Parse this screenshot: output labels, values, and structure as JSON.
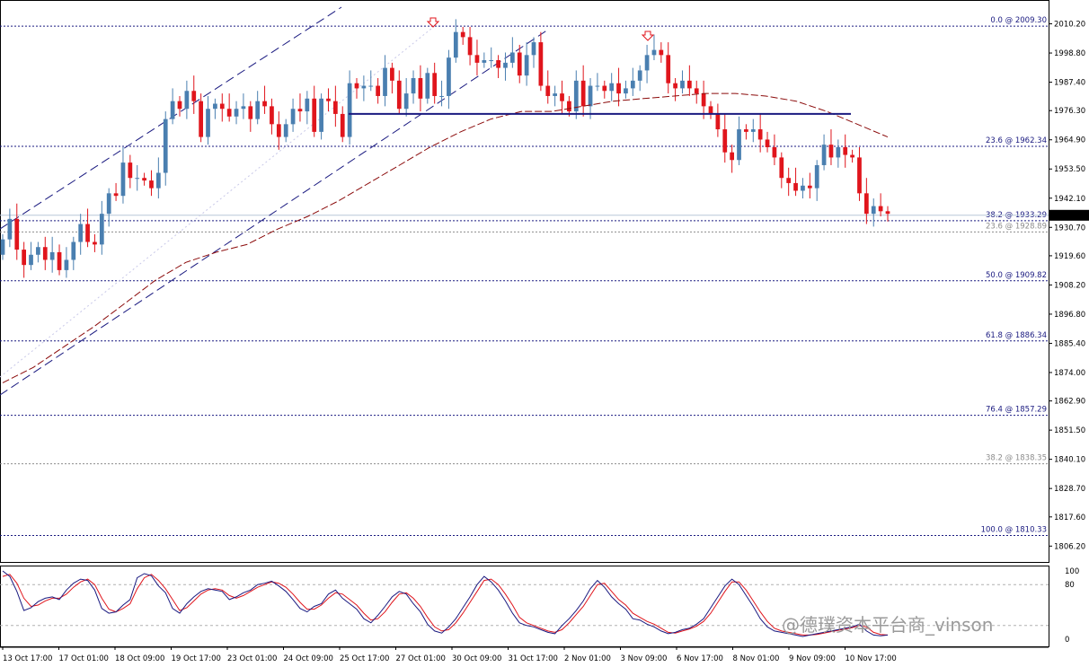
{
  "colors": {
    "bull": "#4a7fb0",
    "bear": "#e0151c",
    "fib_line": "#1a1a80",
    "fib_label": "#1a1a80",
    "fib_ghost": "#8c8c8c",
    "resistance": "#1a1a80",
    "ma": "#8b0a0a",
    "stoch_main": "#1a1a80",
    "stoch_signal": "#e0151c",
    "arrow": "#e0151c",
    "price_tag_bg": "#000000"
  },
  "watermark": "@德璞资本平台商_vinson",
  "current_price": "1935.42",
  "chart_data": {
    "type": "candlestick",
    "symbol_view": "price chart with fibonacci retracement and stochastic oscillator",
    "y_axis": {
      "range": [
        1800.0,
        2016.0
      ],
      "ticks": [
        "2010.20",
        "1998.80",
        "1987.40",
        "1976.30",
        "1964.90",
        "1953.50",
        "1942.10",
        "1930.70",
        "1919.60",
        "1908.20",
        "1896.80",
        "1885.40",
        "1874.00",
        "1862.90",
        "1851.50",
        "1840.10",
        "1828.70",
        "1817.60",
        "1806.20"
      ]
    },
    "x_axis": {
      "ticks": [
        "13 Oct 17:00",
        "17 Oct 01:00",
        "18 Oct 09:00",
        "19 Oct 17:00",
        "23 Oct 01:00",
        "24 Oct 09:00",
        "25 Oct 17:00",
        "27 Oct 01:00",
        "30 Oct 09:00",
        "31 Oct 17:00",
        "2 Nov 01:00",
        "3 Nov 09:00",
        "6 Nov 17:00",
        "8 Nov 01:00",
        "9 Nov 09:00",
        "10 Nov 17:00"
      ]
    },
    "candles_close": [
      1926,
      1934,
      1922,
      1916,
      1920,
      1923,
      1918,
      1921,
      1914,
      1918,
      1925,
      1932,
      1925,
      1924,
      1936,
      1944,
      1943,
      1956,
      1950,
      1950,
      1949,
      1946,
      1952,
      1973,
      1980,
      1977,
      1984,
      1980,
      1966,
      1977,
      1979,
      1977,
      1974,
      1977,
      1978,
      1973,
      1980,
      1978,
      1971,
      1966,
      1971,
      1977,
      1976,
      1981,
      1968,
      1981,
      1980,
      1975,
      1966,
      1987,
      1985,
      1986,
      1986,
      1982,
      1993,
      1988,
      1977,
      1983,
      1989,
      1981,
      1991,
      1982,
      1982,
      1997,
      2007,
      2005,
      1998,
      1995,
      1996,
      1996,
      1993,
      1995,
      1999,
      1990,
      1998,
      2003,
      1986,
      1982,
      1983,
      1980,
      1976,
      1988,
      1978,
      1986,
      1986,
      1984,
      1987,
      1983,
      1985,
      1988,
      1992,
      1998,
      2000,
      1998,
      1987,
      1985,
      1988,
      1985,
      1983,
      1978,
      1975,
      1969,
      1960,
      1957,
      1969,
      1968,
      1969,
      1965,
      1962,
      1958,
      1950,
      1948,
      1945,
      1947,
      1946,
      1955,
      1963,
      1958,
      1962,
      1959,
      1958,
      1944,
      1936,
      1939,
      1937,
      1936
    ],
    "fibonacci_levels": [
      {
        "label": "0.0 @ 2009.30",
        "price": 2009.3,
        "style": "main"
      },
      {
        "label": "23.6 @ 1962.34",
        "price": 1962.34,
        "style": "main"
      },
      {
        "label": "38.2 @ 1933.29",
        "price": 1933.29,
        "style": "main"
      },
      {
        "label": "23.6 @ 1928.89",
        "price": 1928.89,
        "style": "ghost"
      },
      {
        "label": "50.0 @ 1909.82",
        "price": 1909.82,
        "style": "main"
      },
      {
        "label": "61.8 @ 1886.34",
        "price": 1886.34,
        "style": "main"
      },
      {
        "label": "76.4 @ 1857.29",
        "price": 1857.29,
        "style": "main"
      },
      {
        "label": "38.2 @ 1838.35",
        "price": 1838.35,
        "style": "ghost"
      },
      {
        "label": "100.0 @ 1810.33",
        "price": 1810.33,
        "style": "main"
      }
    ],
    "resistance_price": 1975.0,
    "ma_values": [
      1870,
      1876,
      1884,
      1892,
      1901,
      1910,
      1917,
      1921,
      1924,
      1930,
      1935,
      1941,
      1948,
      1955,
      1962,
      1968,
      1973,
      1976,
      1976,
      1978,
      1980,
      1981,
      1982,
      1983,
      1983,
      1982,
      1980,
      1976,
      1971,
      1966
    ],
    "stochastic": {
      "ticks": [
        "100",
        "80",
        "0"
      ],
      "range": [
        0,
        100
      ],
      "main": [
        100,
        92,
        70,
        42,
        46,
        55,
        60,
        62,
        58,
        72,
        82,
        88,
        86,
        72,
        45,
        38,
        40,
        50,
        58,
        90,
        96,
        93,
        78,
        68,
        45,
        38,
        52,
        62,
        70,
        74,
        72,
        70,
        58,
        62,
        68,
        72,
        80,
        82,
        85,
        78,
        70,
        58,
        45,
        40,
        48,
        52,
        66,
        72,
        60,
        52,
        44,
        30,
        24,
        35,
        48,
        62,
        70,
        66,
        52,
        40,
        22,
        12,
        9,
        18,
        30,
        46,
        62,
        80,
        92,
        84,
        72,
        56,
        38,
        24,
        20,
        18,
        14,
        10,
        8,
        20,
        30,
        42,
        56,
        74,
        86,
        76,
        62,
        52,
        44,
        30,
        28,
        22,
        18,
        12,
        8,
        10,
        14,
        16,
        22,
        30,
        46,
        62,
        78,
        88,
        80,
        64,
        48,
        30,
        18,
        12,
        10,
        8,
        6,
        4,
        6,
        8,
        10,
        12,
        14,
        16,
        18,
        22,
        12,
        6,
        5,
        6
      ],
      "signal": [
        92,
        95,
        82,
        60,
        48,
        50,
        56,
        60,
        60,
        66,
        76,
        84,
        88,
        80,
        60,
        44,
        40,
        45,
        52,
        74,
        90,
        95,
        86,
        74,
        58,
        42,
        46,
        56,
        66,
        72,
        74,
        72,
        64,
        60,
        64,
        70,
        76,
        80,
        84,
        82,
        76,
        66,
        54,
        44,
        44,
        50,
        60,
        68,
        66,
        58,
        50,
        38,
        28,
        30,
        40,
        54,
        66,
        68,
        60,
        48,
        32,
        18,
        12,
        14,
        24,
        38,
        54,
        70,
        86,
        88,
        80,
        66,
        50,
        32,
        24,
        20,
        16,
        12,
        10,
        14,
        24,
        36,
        48,
        64,
        80,
        82,
        70,
        58,
        50,
        38,
        32,
        26,
        22,
        16,
        10,
        9,
        12,
        15,
        19,
        26,
        38,
        54,
        70,
        84,
        84,
        72,
        56,
        40,
        26,
        16,
        12,
        10,
        8,
        6,
        6,
        7,
        9,
        11,
        13,
        15,
        17,
        20,
        18,
        10,
        7,
        6
      ]
    }
  }
}
